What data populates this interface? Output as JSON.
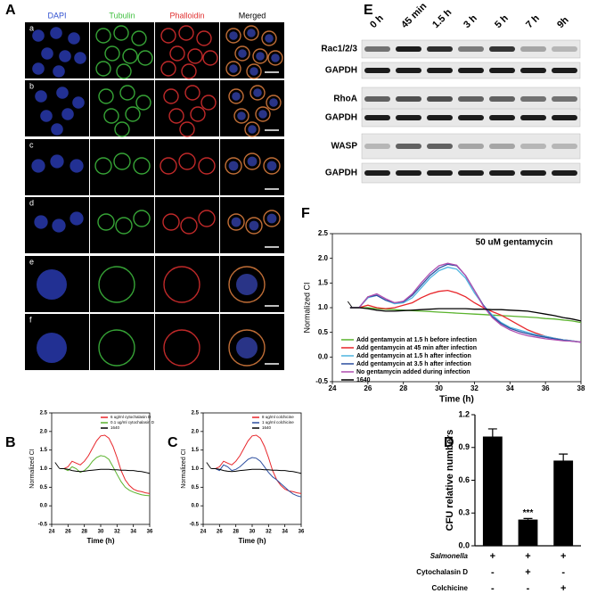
{
  "panel_a": {
    "label": "A",
    "columns": [
      "DAPI",
      "Tubulin",
      "Phalloidin",
      "Merged"
    ],
    "rows": [
      "a",
      "b",
      "c",
      "d",
      "e",
      "f"
    ]
  },
  "panel_e": {
    "label": "E",
    "timepoints": [
      "0 h",
      "45 min",
      "1.5 h",
      "3 h",
      "5 h",
      "7 h",
      "9h"
    ],
    "blots": [
      "Rac1/2/3",
      "GAPDH",
      "RhoA",
      "GAPDH",
      "WASP",
      "GAPDH"
    ]
  },
  "chart_data": [
    {
      "type": "line",
      "label": "B",
      "xlabel": "Time (h)",
      "ylabel": "Normalized CI",
      "x": [
        25,
        25.5,
        26,
        26.5,
        27,
        27.5,
        28,
        28.5,
        29,
        29.5,
        30,
        30.5,
        31,
        31.5,
        32,
        32.5,
        33,
        33.5,
        34,
        34.5,
        35,
        35.5,
        36
      ],
      "series": [
        {
          "name": "6 ug/ml cytochalasin D",
          "color": "#e8262b",
          "values": [
            1.0,
            1.0,
            1.05,
            1.2,
            1.15,
            1.1,
            1.2,
            1.35,
            1.55,
            1.75,
            1.88,
            1.9,
            1.82,
            1.6,
            1.3,
            0.95,
            0.7,
            0.55,
            0.45,
            0.4,
            0.38,
            0.35,
            0.33
          ]
        },
        {
          "name": "0.1 ug/ml cytochalasin D",
          "color": "#5ab32d",
          "values": [
            1.0,
            1.0,
            0.95,
            1.05,
            1.0,
            0.9,
            0.95,
            1.05,
            1.2,
            1.3,
            1.35,
            1.33,
            1.25,
            1.05,
            0.85,
            0.65,
            0.5,
            0.42,
            0.37,
            0.33,
            0.3,
            0.28,
            0.27
          ]
        },
        {
          "name": "1640",
          "color": "#000000",
          "values": [
            1.0,
            1.0,
            0.98,
            0.95,
            0.93,
            0.92,
            0.93,
            0.95,
            0.96,
            0.97,
            0.98,
            0.98,
            0.98,
            0.97,
            0.97,
            0.96,
            0.96,
            0.95,
            0.95,
            0.93,
            0.92,
            0.9,
            0.87
          ]
        }
      ],
      "xlim": [
        24,
        36
      ],
      "xticks": [
        24,
        26,
        28,
        30,
        32,
        34,
        36
      ],
      "ylim": [
        -0.5,
        2.5
      ],
      "yticks": [
        -0.5,
        {
          "value": 0,
          "label": "0.0"
        },
        0.5,
        {
          "value": 1,
          "label": "1.0"
        },
        1.5,
        {
          "value": 2,
          "label": "2.0"
        },
        2.5
      ]
    },
    {
      "type": "line",
      "label": "C",
      "xlabel": "Time (h)",
      "ylabel": "Normalized CI",
      "x": [
        25,
        25.5,
        26,
        26.5,
        27,
        27.5,
        28,
        28.5,
        29,
        29.5,
        30,
        30.5,
        31,
        31.5,
        32,
        32.5,
        33,
        33.5,
        34,
        34.5,
        35,
        35.5,
        36
      ],
      "series": [
        {
          "name": "8 ug/ml colchicine",
          "color": "#e8262b",
          "values": [
            1.0,
            1.0,
            1.05,
            1.2,
            1.15,
            1.1,
            1.2,
            1.35,
            1.55,
            1.75,
            1.88,
            1.9,
            1.82,
            1.6,
            1.3,
            0.95,
            0.7,
            0.55,
            0.45,
            0.4,
            0.38,
            0.35,
            0.33
          ]
        },
        {
          "name": "1 ug/ml colchicine",
          "color": "#2d4fa0",
          "values": [
            1.0,
            1.0,
            0.95,
            1.1,
            1.05,
            0.95,
            0.98,
            1.05,
            1.15,
            1.25,
            1.3,
            1.28,
            1.2,
            1.05,
            0.9,
            0.78,
            0.7,
            0.6,
            0.5,
            0.4,
            0.32,
            0.27,
            0.24
          ]
        },
        {
          "name": "1640",
          "color": "#000000",
          "values": [
            1.0,
            1.0,
            0.98,
            0.95,
            0.93,
            0.92,
            0.93,
            0.95,
            0.96,
            0.97,
            0.98,
            0.98,
            0.98,
            0.97,
            0.97,
            0.96,
            0.96,
            0.95,
            0.95,
            0.93,
            0.92,
            0.9,
            0.87
          ]
        }
      ],
      "xlim": [
        24,
        36
      ],
      "xticks": [
        24,
        26,
        28,
        30,
        32,
        34,
        36
      ],
      "ylim": [
        -0.5,
        2.5
      ],
      "yticks": [
        -0.5,
        {
          "value": 0,
          "label": "0.0"
        },
        0.5,
        {
          "value": 1,
          "label": "1.0"
        },
        1.5,
        {
          "value": 2,
          "label": "2.0"
        },
        2.5
      ]
    },
    {
      "type": "bar",
      "label": "D",
      "ylabel": "CFU relative numbers",
      "color": "#000000",
      "values": [
        1.0,
        0.24,
        0.78
      ],
      "errors": [
        0.07,
        0.01,
        0.06
      ],
      "significance": [
        null,
        "***",
        null
      ],
      "conditions": [
        {
          "name": "Salmonella",
          "marks": [
            "+",
            "+",
            "+"
          ]
        },
        {
          "name": "Cytochalasin D",
          "marks": [
            "-",
            "+",
            "-"
          ]
        },
        {
          "name": "Colchicine",
          "marks": [
            "-",
            "-",
            "+"
          ]
        }
      ],
      "ylim": [
        0,
        1.2
      ],
      "yticks": [
        {
          "value": 0,
          "label": "0.0"
        },
        0.3,
        0.6,
        0.9,
        1.2
      ]
    },
    {
      "type": "line",
      "label": "F",
      "title": "50 uM gentamycin",
      "xlabel": "Time (h)",
      "ylabel": "Normalized CI",
      "x": [
        25,
        25.5,
        26,
        26.5,
        27,
        27.5,
        28,
        28.5,
        29,
        29.5,
        30,
        30.5,
        31,
        31.5,
        32,
        32.5,
        33,
        33.5,
        34,
        34.5,
        35,
        35.5,
        36,
        36.5,
        37,
        37.5,
        38
      ],
      "series": [
        {
          "name": "Add gentamycin at 1.5 h before infection",
          "color": "#5ab32d",
          "values": [
            1.0,
            1.0,
            1.0,
            0.98,
            0.97,
            0.96,
            0.95,
            0.94,
            0.93,
            0.92,
            0.91,
            0.9,
            0.89,
            0.88,
            0.87,
            0.86,
            0.85,
            0.84,
            0.83,
            0.82,
            0.81,
            0.8,
            0.78,
            0.77,
            0.75,
            0.73,
            0.7
          ]
        },
        {
          "name": "Add gentamycin at 45 min after infection",
          "color": "#e8262b",
          "values": [
            1.0,
            1.0,
            1.05,
            1.0,
            0.98,
            1.0,
            1.05,
            1.1,
            1.2,
            1.28,
            1.33,
            1.35,
            1.3,
            1.22,
            1.1,
            1.0,
            0.92,
            0.85,
            0.75,
            0.65,
            0.55,
            0.48,
            0.42,
            0.38,
            0.35,
            0.33,
            0.3
          ]
        },
        {
          "name": "Add gentamycin at 1.5 h after infection",
          "color": "#4fb5e0",
          "values": [
            1.0,
            1.0,
            1.2,
            1.25,
            1.15,
            1.08,
            1.1,
            1.2,
            1.4,
            1.6,
            1.75,
            1.82,
            1.78,
            1.6,
            1.3,
            1.05,
            0.85,
            0.7,
            0.6,
            0.55,
            0.5,
            0.45,
            0.42,
            0.38,
            0.35,
            0.33,
            0.3
          ]
        },
        {
          "name": "Add gentamycin at 3.5 h after infection",
          "color": "#2d4fa0",
          "values": [
            1.0,
            1.0,
            1.22,
            1.25,
            1.15,
            1.1,
            1.12,
            1.25,
            1.45,
            1.65,
            1.8,
            1.88,
            1.85,
            1.65,
            1.35,
            1.05,
            0.82,
            0.68,
            0.58,
            0.52,
            0.47,
            0.43,
            0.4,
            0.37,
            0.34,
            0.32,
            0.3
          ]
        },
        {
          "name": "No gentamycin added during infection",
          "color": "#b04fb0",
          "values": [
            1.0,
            1.0,
            1.22,
            1.28,
            1.18,
            1.1,
            1.13,
            1.28,
            1.5,
            1.7,
            1.85,
            1.9,
            1.86,
            1.65,
            1.35,
            1.03,
            0.8,
            0.65,
            0.55,
            0.48,
            0.43,
            0.4,
            0.37,
            0.35,
            0.33,
            0.32,
            0.3
          ]
        },
        {
          "name": "1640",
          "color": "#000000",
          "values": [
            1.0,
            1.0,
            0.98,
            0.95,
            0.93,
            0.93,
            0.94,
            0.95,
            0.96,
            0.97,
            0.98,
            0.98,
            0.98,
            0.98,
            0.97,
            0.97,
            0.96,
            0.96,
            0.95,
            0.94,
            0.93,
            0.9,
            0.87,
            0.84,
            0.8,
            0.77,
            0.73
          ]
        }
      ],
      "xlim": [
        24,
        38
      ],
      "xticks": [
        24,
        26,
        28,
        30,
        32,
        34,
        36,
        38
      ],
      "ylim": [
        -0.5,
        2.5
      ],
      "yticks": [
        -0.5,
        {
          "value": 0,
          "label": "0.0"
        },
        0.5,
        {
          "value": 1,
          "label": "1.0"
        },
        1.5,
        {
          "value": 2,
          "label": "2.0"
        },
        2.5
      ]
    }
  ]
}
